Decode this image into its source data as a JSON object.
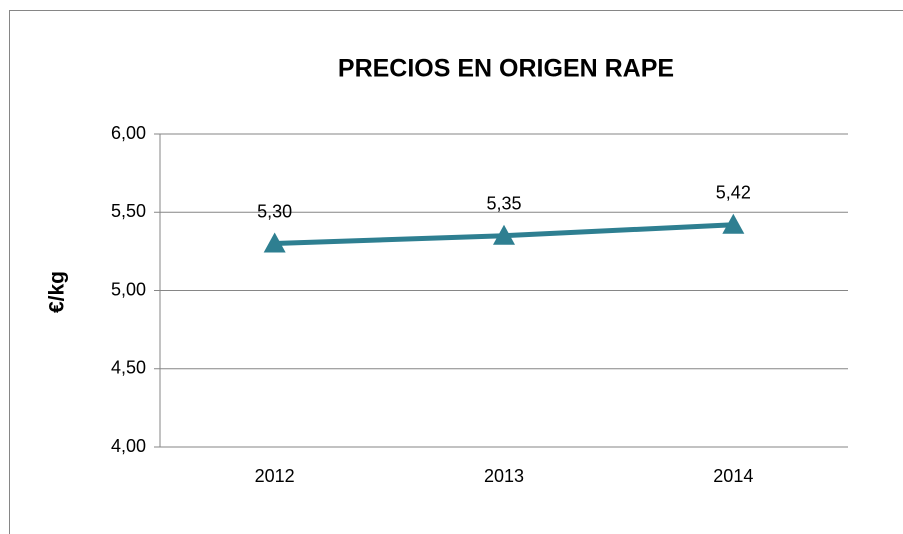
{
  "chart_data": {
    "type": "line",
    "title": "PRECIOS EN ORIGEN RAPE",
    "y_label": "€/kg",
    "categories": [
      "2012",
      "2013",
      "2014"
    ],
    "values": [
      5.3,
      5.35,
      5.42
    ],
    "value_labels": [
      "5,30",
      "5,35",
      "5,42"
    ],
    "color": "#2e7f91",
    "ylim": [
      4,
      6
    ],
    "yticks": [
      {
        "value": 4,
        "label": "4,00"
      },
      {
        "value": 4.5,
        "label": "4,50"
      },
      {
        "value": 5,
        "label": "5,00"
      },
      {
        "value": 5.5,
        "label": "5,50"
      },
      {
        "value": 6,
        "label": "6,00"
      }
    ],
    "grid": true
  }
}
